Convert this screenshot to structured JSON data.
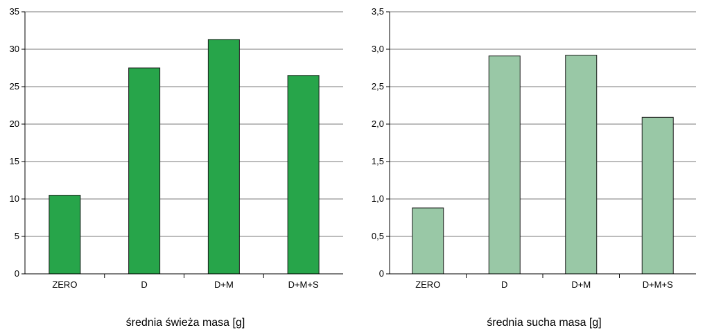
{
  "chart_data": [
    {
      "type": "bar",
      "categories": [
        "ZERO",
        "D",
        "D+M",
        "D+M+S"
      ],
      "values": [
        10.5,
        27.5,
        31.3,
        26.5
      ],
      "xlabel": "średnia świeża masa [g]",
      "ylabel": "",
      "ylim": [
        0,
        35
      ],
      "yticks": [
        "0",
        "5",
        "10",
        "15",
        "20",
        "25",
        "30",
        "35"
      ],
      "grid": true,
      "bar_color": "#27a54a"
    },
    {
      "type": "bar",
      "categories": [
        "ZERO",
        "D",
        "D+M",
        "D+M+S"
      ],
      "values": [
        0.88,
        2.91,
        2.92,
        2.09
      ],
      "xlabel": "średnia sucha masa [g]",
      "ylabel": "",
      "ylim": [
        0,
        3.5
      ],
      "yticks": [
        "0",
        "0,5",
        "1,0",
        "1,5",
        "2,0",
        "2,5",
        "3,0",
        "3,5"
      ],
      "grid": true,
      "bar_color": "#99c8a6"
    }
  ]
}
